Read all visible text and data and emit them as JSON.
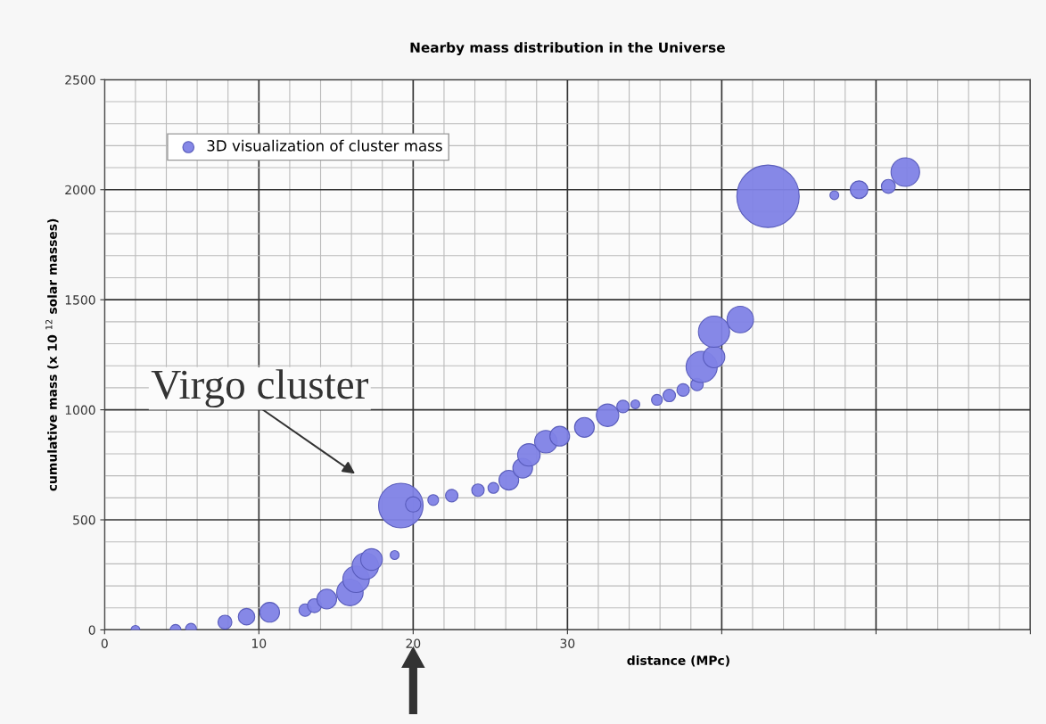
{
  "chart_data": {
    "type": "bubble",
    "title": "Nearby mass distribution in the Universe",
    "xlabel": "distance (MPc)",
    "ylabel": "cumulative mass (x 10 $^{12}$ solar masses)",
    "xlim": [
      0,
      60
    ],
    "xticks": [
      0,
      10,
      20,
      30,
      {
        "value": 40,
        "label": null
      },
      {
        "value": 50,
        "label": null
      },
      {
        "value": 60,
        "label": null
      }
    ],
    "ylim": [
      0,
      2500
    ],
    "yticks": [
      0,
      500,
      1000,
      1500,
      2000,
      2500
    ],
    "grid": true,
    "legend": "top left",
    "marker": "circle",
    "annotations": [
      {
        "text": "Virgo cluster",
        "x": 19.2,
        "y": 565
      }
    ],
    "series": [
      {
        "name": "3D visualization of cluster mass",
        "color": "#7f82e6",
        "x": [
          2,
          4.6,
          5.6,
          7.8,
          9.2,
          10.7,
          13,
          13.6,
          14.4,
          15.9,
          16.3,
          16.9,
          17.3,
          18.8,
          19.2,
          20,
          21.3,
          22.5,
          24.2,
          25.2,
          26.2,
          27.1,
          27.5,
          28.6,
          29.5,
          31.1,
          32.6,
          33.6,
          34.4,
          35.8,
          36.6,
          37.5,
          38.4,
          38.7,
          39.5,
          39.5,
          41.2,
          43,
          47.3,
          48.9,
          50.8,
          51.9
        ],
        "values": [
          0,
          0,
          5,
          35,
          60,
          80,
          90,
          110,
          140,
          170,
          230,
          290,
          320,
          340,
          565,
          570,
          590,
          610,
          635,
          645,
          680,
          735,
          795,
          855,
          880,
          920,
          975,
          1015,
          1025,
          1045,
          1065,
          1090,
          1115,
          1195,
          1240,
          1355,
          1410,
          1970,
          1975,
          2000,
          2015,
          2080
        ],
        "sizes": [
          0.02,
          0.03,
          0.03,
          0.05,
          0.07,
          0.1,
          0.04,
          0.05,
          0.1,
          0.18,
          0.18,
          0.18,
          0.12,
          0.02,
          0.51,
          0.06,
          0.03,
          0.04,
          0.04,
          0.03,
          0.1,
          0.1,
          0.13,
          0.13,
          0.1,
          0.1,
          0.13,
          0.04,
          0.02,
          0.03,
          0.04,
          0.04,
          0.04,
          0.25,
          0.12,
          0.25,
          0.18,
          1,
          0.02,
          0.08,
          0.05,
          0.21
        ]
      }
    ]
  }
}
